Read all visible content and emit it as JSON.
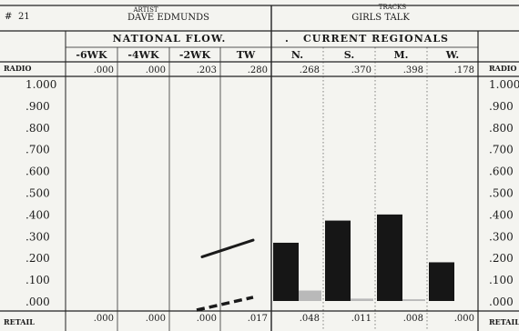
{
  "header": {
    "number": "21",
    "artist_caption": "ARTIST",
    "artist": "DAVE EDMUNDS",
    "tracks_caption": "TRACKS",
    "track": "GIRLS TALK"
  },
  "sections": {
    "national": "NATIONAL FLOW.",
    "regional": "CURRENT REGIONALS"
  },
  "side_labels": {
    "top": "RADIO",
    "bottom": "RETAIL",
    "right_top": "RADIO",
    "right_bottom": "RETAIL"
  },
  "chart_data": {
    "type": "bar",
    "categories": [
      "-6WK",
      "-4WK",
      "-2WK",
      "TW",
      "N.",
      "S.",
      "M.",
      "W."
    ],
    "radio_labels": [
      ".000",
      ".000",
      ".203",
      ".280",
      ".268",
      ".370",
      ".398",
      ".178"
    ],
    "retail_labels": [
      ".000",
      ".000",
      ".000",
      ".017",
      ".048",
      ".011",
      ".008",
      ".000"
    ],
    "series": [
      {
        "name": "RADIO",
        "values": [
          0,
          0,
          0.203,
          0.28,
          0.268,
          0.37,
          0.398,
          0.178
        ]
      },
      {
        "name": "RETAIL",
        "values": [
          0,
          0,
          0,
          0.017,
          0.048,
          0.011,
          0.008,
          0
        ]
      }
    ],
    "yticks": [
      "1.000",
      ".900",
      ".800",
      ".700",
      ".600",
      ".500",
      ".400",
      ".300",
      ".200",
      ".100",
      ".000"
    ],
    "right_yticks": [
      "1.000",
      ".900",
      ".800",
      ".700",
      ".600",
      ".500",
      ".400",
      ".300",
      ".200",
      ".100",
      ".000"
    ],
    "ylim": [
      0,
      1
    ],
    "colors": {
      "radio_bar": "#161616",
      "retail_bar": "#b9b9b9",
      "ink": "#1a1a1a",
      "paper": "#f4f4f0"
    }
  }
}
